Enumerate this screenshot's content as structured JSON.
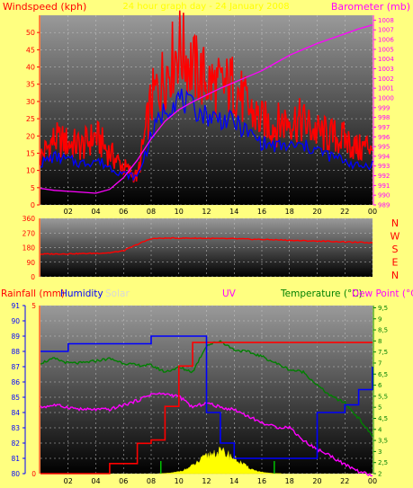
{
  "top": {
    "left_title": "Windspeed (kph)",
    "center_title": "24 hour graph day - 24 January 2008",
    "right_title": "Barometer (mb)",
    "left_ticks": [
      0,
      5,
      10,
      15,
      20,
      25,
      30,
      35,
      40,
      45,
      50
    ],
    "right_ticks": [
      989,
      990,
      991,
      992,
      993,
      994,
      995,
      996,
      997,
      998,
      999,
      1000,
      1001,
      1002,
      1003,
      1004,
      1005,
      1006,
      1007,
      1008
    ],
    "x_ticks": [
      "02",
      "04",
      "06",
      "08",
      "10",
      "12",
      "14",
      "16",
      "18",
      "20",
      "22",
      "00"
    ]
  },
  "mid": {
    "left_ticks": [
      0,
      90,
      180,
      270,
      360
    ],
    "compass": [
      "N",
      "W",
      "S",
      "E",
      "N"
    ]
  },
  "bottom": {
    "rain_title": "Rainfall (mm)",
    "humidity_title": "Humidity",
    "solar_title": "Solar",
    "uv_title": "UV",
    "temp_title": "Temperature (°C)",
    "dew_title": "Dew Point (°C)",
    "humidity_ticks": [
      80,
      81,
      82,
      83,
      84,
      85,
      86,
      87,
      88,
      89,
      90,
      91
    ],
    "rain_ticks": [
      0,
      5
    ],
    "temp_ticks": [
      "2",
      "2,5",
      "3",
      "3,5",
      "4",
      "4,5",
      "5",
      "5,5",
      "6",
      "6,5",
      "7",
      "7,5",
      "8",
      "8,5",
      "9",
      "9,5"
    ]
  },
  "chart_data": [
    {
      "type": "line",
      "title": "24 hour graph day - 24 January 2008",
      "x": [
        0,
        1,
        2,
        3,
        4,
        5,
        6,
        7,
        8,
        9,
        10,
        11,
        12,
        13,
        14,
        15,
        16,
        17,
        18,
        19,
        20,
        21,
        22,
        23,
        24
      ],
      "series": [
        {
          "name": "Windspeed (kph)",
          "color": "#ff0000",
          "axis": "left",
          "values": [
            14,
            19,
            18,
            17,
            20,
            15,
            11,
            8,
            30,
            38,
            46,
            40,
            36,
            34,
            35,
            28,
            24,
            23,
            25,
            24,
            21,
            20,
            19,
            16,
            18
          ]
        },
        {
          "name": "Barometer (mb)",
          "color": "#ff00ff",
          "axis": "right",
          "values": [
            990.7,
            990.5,
            990.4,
            990.3,
            990.2,
            990.6,
            991.8,
            993.6,
            995.8,
            997.6,
            998.8,
            999.6,
            1000.3,
            1001.0,
            1001.6,
            1002.2,
            1002.8,
            1003.6,
            1004.4,
            1005.0,
            1005.6,
            1006.1,
            1006.6,
            1007.1,
            1007.5
          ]
        }
      ],
      "gust_values": [
        12,
        14,
        13,
        12,
        13,
        11,
        9,
        8,
        20,
        28,
        31,
        28,
        26,
        25,
        24,
        21,
        18,
        17,
        17,
        17,
        16,
        14,
        13,
        11,
        12
      ],
      "gust_color": "#0000ff",
      "ylim_left": [
        0,
        55
      ],
      "ylim_right": [
        989,
        1008.5
      ]
    },
    {
      "type": "line",
      "x": [
        0,
        1,
        2,
        3,
        4,
        5,
        6,
        7,
        8,
        9,
        10,
        11,
        12,
        13,
        14,
        15,
        16,
        17,
        18,
        19,
        20,
        21,
        22,
        23,
        24
      ],
      "series": [
        {
          "name": "Wind direction",
          "color": "#ff0000",
          "values": [
            140,
            141,
            142,
            143,
            145,
            148,
            160,
            200,
            235,
            238,
            238,
            238,
            237,
            235,
            235,
            232,
            230,
            228,
            225,
            222,
            220,
            218,
            215,
            212,
            210
          ]
        }
      ],
      "ylim": [
        0,
        360
      ]
    },
    {
      "type": "line",
      "x": [
        0,
        1,
        2,
        3,
        4,
        5,
        6,
        7,
        8,
        9,
        10,
        11,
        12,
        13,
        14,
        15,
        16,
        17,
        18,
        19,
        20,
        21,
        22,
        23,
        24
      ],
      "series": [
        {
          "name": "Humidity",
          "color": "#0000ff",
          "axis": "humidity",
          "values": [
            88.0,
            88.0,
            88.5,
            88.5,
            88.5,
            88.5,
            88.5,
            88.5,
            89.0,
            89.0,
            89.0,
            89.0,
            84.0,
            82.0,
            81.0,
            81.0,
            81.0,
            81.0,
            81.0,
            81.0,
            84.0,
            84.0,
            84.5,
            85.5,
            87.0
          ]
        },
        {
          "name": "Rainfall (mm)",
          "color": "#ff0000",
          "axis": "rain",
          "values": [
            0,
            0,
            0,
            0,
            0,
            0.3,
            0.3,
            0.9,
            1.0,
            2.0,
            3.2,
            3.9,
            3.9,
            3.9,
            3.9,
            3.9,
            3.9,
            3.9,
            3.9,
            3.9,
            3.9,
            3.9,
            3.9,
            3.9,
            3.9
          ]
        },
        {
          "name": "Temperature (°C)",
          "color": "#008000",
          "axis": "temp",
          "values": [
            7.0,
            7.2,
            7.0,
            7.0,
            7.1,
            7.2,
            7.0,
            6.9,
            6.9,
            6.6,
            6.8,
            6.6,
            7.8,
            8.0,
            7.6,
            7.5,
            7.3,
            7.0,
            6.7,
            6.6,
            6.0,
            5.5,
            5.2,
            4.5,
            3.7
          ]
        },
        {
          "name": "Dew Point (°C)",
          "color": "#ff00ff",
          "axis": "temp",
          "values": [
            5.0,
            5.1,
            5.0,
            4.9,
            4.9,
            4.9,
            5.1,
            5.3,
            5.6,
            5.6,
            5.5,
            5.0,
            5.2,
            5.0,
            4.9,
            4.6,
            4.3,
            4.1,
            4.1,
            3.5,
            3.1,
            2.8,
            2.4,
            2.1,
            1.9
          ]
        }
      ],
      "ylim_humidity": [
        80,
        91
      ],
      "ylim_rain": [
        0,
        5
      ],
      "ylim_temp": [
        2,
        9.6
      ]
    }
  ]
}
